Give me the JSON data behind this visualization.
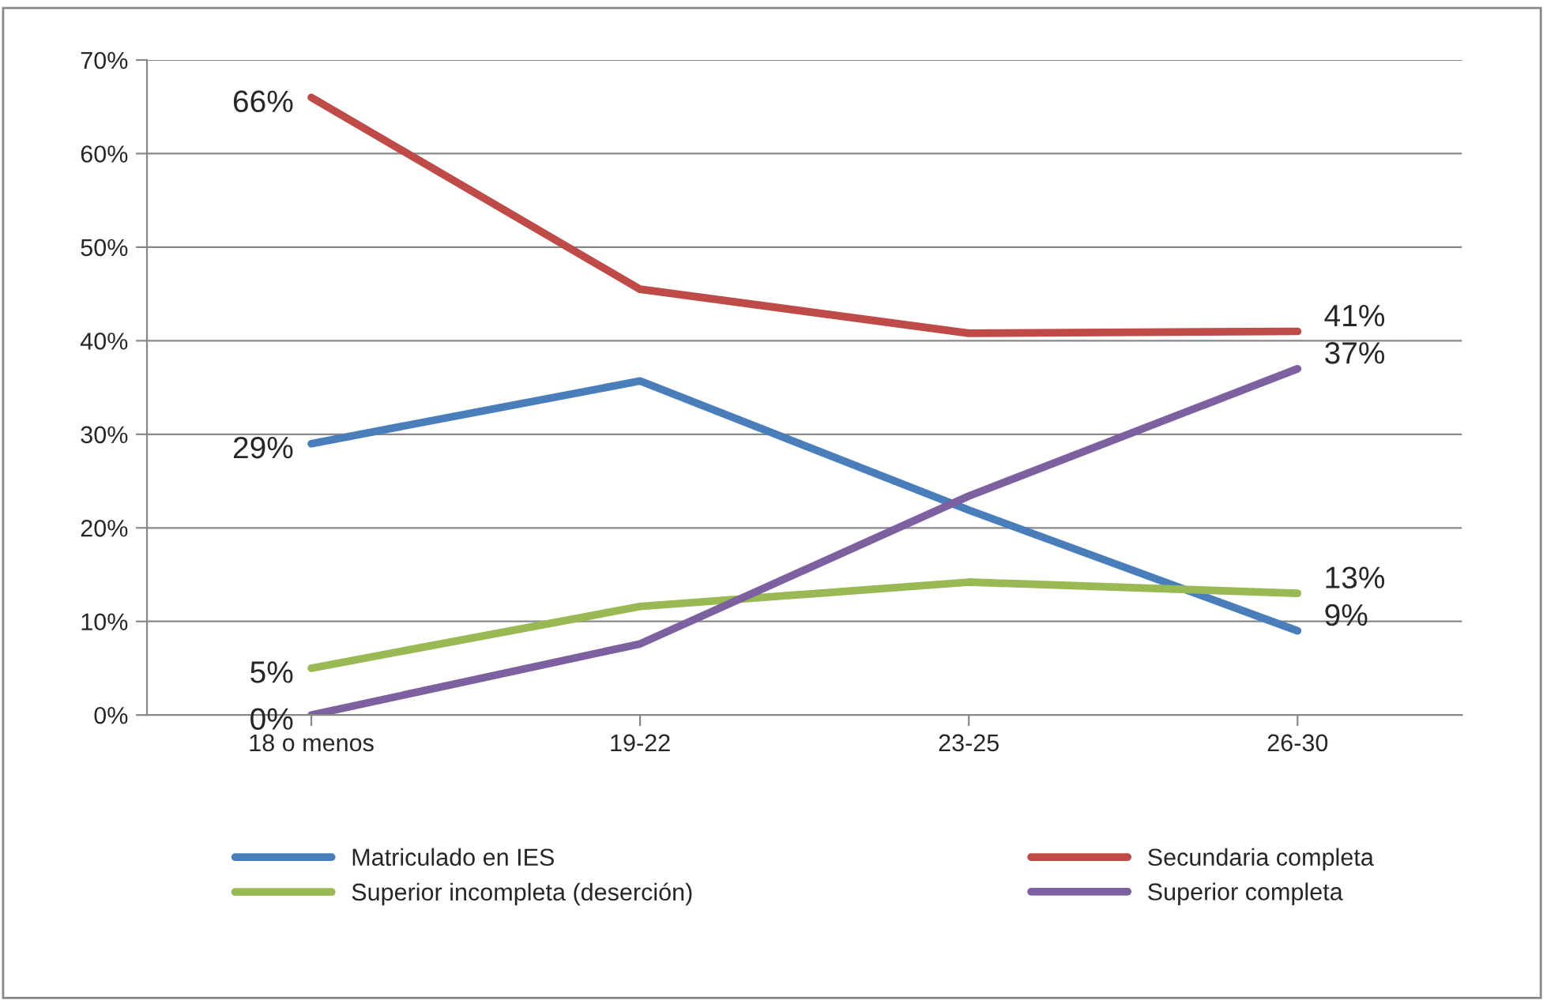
{
  "chart_data": {
    "type": "line",
    "categories": [
      "18 o menos",
      "19-22",
      "23-25",
      "26-30"
    ],
    "series": [
      {
        "name": "Matriculado en IES",
        "color": "#4a7ebb",
        "values": [
          29,
          35.7,
          21.9,
          9
        ],
        "value_labels": [
          "29%",
          null,
          null,
          "9%"
        ]
      },
      {
        "name": "Secundaria completa",
        "color": "#be4b48",
        "values": [
          66,
          45.5,
          40.8,
          41
        ],
        "value_labels": [
          "66%",
          null,
          null,
          "41%"
        ]
      },
      {
        "name": "Superior incompleta (deserción)",
        "color": "#98b954",
        "values": [
          5,
          11.6,
          14.2,
          13
        ],
        "value_labels": [
          "5%",
          null,
          null,
          "13%"
        ]
      },
      {
        "name": "Superior completa",
        "color": "#7d60a0",
        "values": [
          0,
          7.6,
          23.4,
          37
        ],
        "value_labels": [
          "0%",
          null,
          null,
          "37%"
        ]
      }
    ],
    "ylim": [
      0,
      70
    ],
    "yticks": [
      {
        "value": 0,
        "label": "0%"
      },
      {
        "value": 10,
        "label": "10%"
      },
      {
        "value": 20,
        "label": "20%"
      },
      {
        "value": 30,
        "label": "30%"
      },
      {
        "value": 40,
        "label": "40%"
      },
      {
        "value": 50,
        "label": "50%"
      },
      {
        "value": 60,
        "label": "60%"
      },
      {
        "value": 70,
        "label": "70%"
      }
    ],
    "grid": "y",
    "legend": "bottom",
    "marker": "none",
    "line_style": "solid"
  }
}
